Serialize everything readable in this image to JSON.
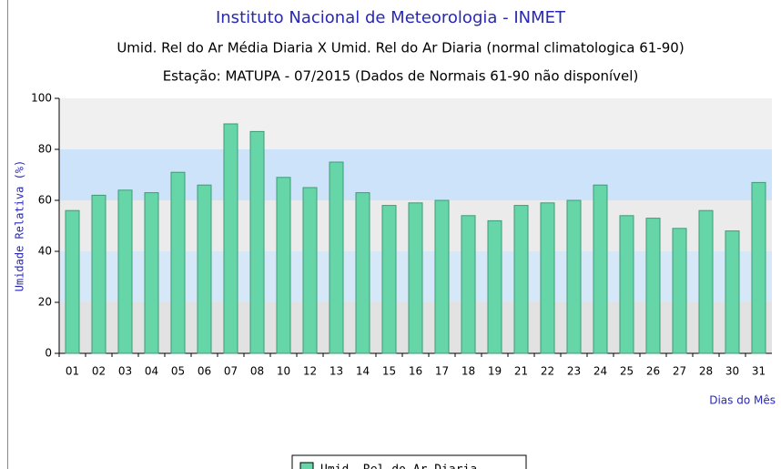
{
  "chart_data": {
    "type": "bar",
    "title": "Instituto Nacional de Meteorologia - INMET",
    "subtitle": "Umid. Rel do Ar Média Diaria X Umid. Rel do Ar Diaria (normal climatologica 61-90)",
    "subtitle2": "Estação: MATUPA - 07/2015 (Dados de Normais 61-90 não disponível)",
    "y_label": "Umidade Relativa (%)",
    "x_label": "Dias do Mês",
    "categories": [
      "01",
      "02",
      "03",
      "04",
      "05",
      "06",
      "07",
      "08",
      "10",
      "12",
      "13",
      "14",
      "15",
      "16",
      "17",
      "18",
      "19",
      "21",
      "22",
      "23",
      "24",
      "25",
      "26",
      "27",
      "28",
      "30",
      "31"
    ],
    "series": [
      {
        "name": "Umid. Rel do Ar Diaria",
        "color": "#66d6a8",
        "values": [
          56,
          62,
          64,
          63,
          71,
          66,
          90,
          87,
          69,
          65,
          75,
          63,
          58,
          59,
          60,
          54,
          52,
          58,
          59,
          60,
          66,
          54,
          53,
          49,
          56,
          48,
          67
        ]
      }
    ],
    "ylim": [
      0,
      100
    ],
    "yticks": [
      0,
      20,
      40,
      60,
      80,
      100
    ],
    "band_colors": [
      "#e2e2e2",
      "#d6e8f8",
      "#ebebeb",
      "#cce3f9",
      "#f0f0f0"
    ]
  }
}
